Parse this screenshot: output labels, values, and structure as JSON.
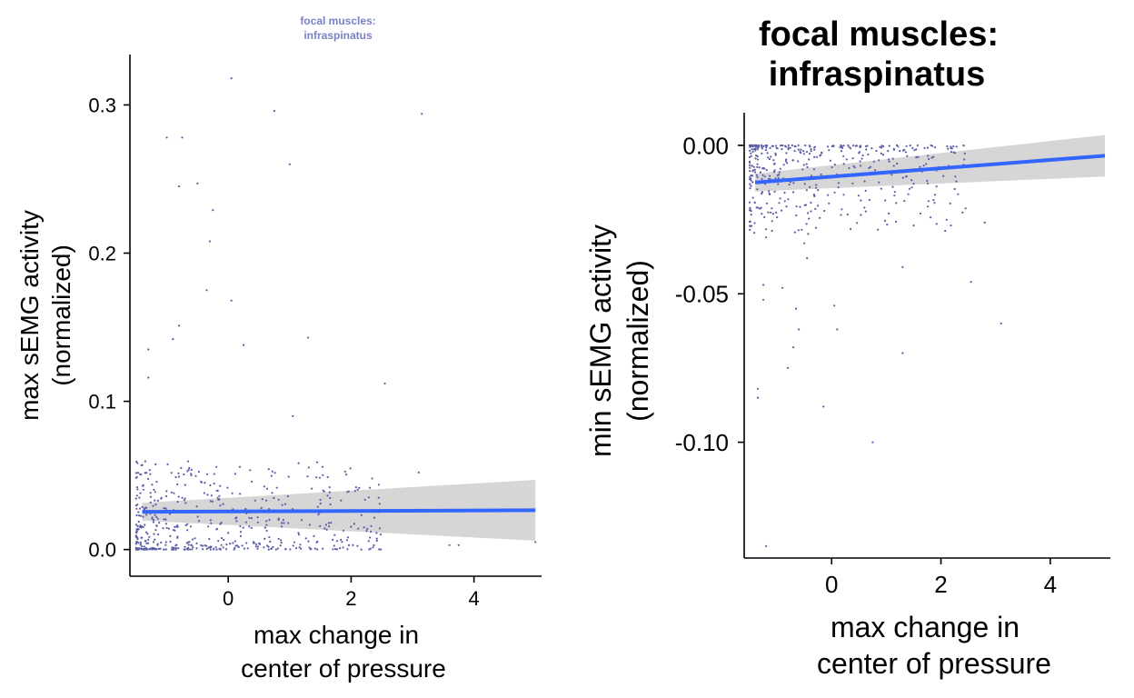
{
  "chart_data": [
    {
      "type": "scatter",
      "title": [
        "focal muscles:",
        "infraspinatus"
      ],
      "xlabel": [
        "max change in",
        "center of pressure"
      ],
      "ylabel": [
        "max sEMG activity",
        "(normalized)"
      ],
      "xlim": [
        -1.6,
        5.1
      ],
      "ylim": [
        -0.018,
        0.334
      ],
      "x_ticks": [
        0,
        2,
        4
      ],
      "x_tick_labels": [
        "0",
        "2",
        "4"
      ],
      "y_ticks": [
        0.0,
        0.1,
        0.2,
        0.3
      ],
      "y_tick_labels": [
        "0.0",
        "0.1",
        "0.2",
        "0.3"
      ],
      "grid": false,
      "colors": {
        "points": "#5b5ea6",
        "fit_line": "#3366ff",
        "ci_band": "#d6d6d6",
        "title": "#7b7fc4"
      },
      "fit": {
        "x": [
          -1.4,
          5.0
        ],
        "y": [
          0.0255,
          0.0265
        ],
        "ci_lower": [
          0.0195,
          0.006
        ],
        "ci_upper": [
          0.0315,
          0.047
        ]
      },
      "points_notable": {
        "x": [
          0.05,
          0.75,
          3.15,
          -1.0,
          -0.75,
          -0.8,
          -0.5,
          -0.25,
          -0.3,
          -0.35,
          1.0,
          0.05,
          0.25,
          1.3,
          -0.8,
          -0.9,
          -1.3,
          -1.3,
          2.55,
          1.05,
          3.6,
          3.75,
          5.0,
          3.1
        ],
        "y": [
          0.318,
          0.296,
          0.294,
          0.278,
          0.278,
          0.245,
          0.247,
          0.229,
          0.208,
          0.175,
          0.26,
          0.168,
          0.138,
          0.143,
          0.151,
          0.142,
          0.135,
          0.116,
          0.112,
          0.09,
          0.003,
          0.003,
          0.005,
          0.052
        ]
      },
      "points_cluster": {
        "n": 520,
        "x_range": [
          -1.5,
          2.5
        ],
        "y_range": [
          0.0,
          0.06
        ]
      }
    },
    {
      "type": "scatter",
      "title": [
        "focal muscles:",
        "infraspinatus"
      ],
      "xlabel": [
        "max change in",
        "center of pressure"
      ],
      "ylabel": [
        "min sEMG activity",
        "(normalized)"
      ],
      "xlim": [
        -1.6,
        5.1
      ],
      "ylim": [
        -0.139,
        0.011
      ],
      "x_ticks": [
        0,
        2,
        4
      ],
      "x_tick_labels": [
        "0",
        "2",
        "4"
      ],
      "y_ticks": [
        0.0,
        -0.05,
        -0.1
      ],
      "y_tick_labels": [
        "0.00",
        "-0.05",
        "-0.10"
      ],
      "grid": false,
      "colors": {
        "points": "#5b5ea6",
        "fit_line": "#3366ff",
        "ci_band": "#d6d6d6",
        "title": "#000000"
      },
      "fit": {
        "x": [
          -1.4,
          5.0
        ],
        "y": [
          -0.0125,
          -0.0035
        ],
        "ci_lower": [
          -0.0155,
          -0.0105
        ],
        "ci_upper": [
          -0.0095,
          0.0035
        ]
      },
      "points_notable": {
        "x": [
          -1.35,
          -1.35,
          -1.2,
          -1.25,
          -0.65,
          -0.6,
          -0.7,
          -0.8,
          -0.45,
          -0.15,
          0.05,
          0.75,
          1.3,
          1.3,
          0.1,
          2.55,
          3.1,
          -1.25,
          -1.2,
          -0.9,
          -0.5,
          0.6,
          1.5,
          2.8
        ],
        "y": [
          -0.082,
          -0.085,
          -0.135,
          -0.047,
          -0.055,
          -0.062,
          -0.068,
          -0.075,
          -0.038,
          -0.088,
          -0.054,
          -0.1,
          -0.07,
          -0.041,
          -0.062,
          -0.046,
          -0.06,
          -0.052,
          -0.031,
          -0.048,
          -0.033,
          -0.021,
          -0.027,
          -0.026
        ]
      },
      "points_cluster": {
        "n": 430,
        "x_range": [
          -1.5,
          2.5
        ],
        "y_range": [
          -0.03,
          0.0
        ]
      }
    }
  ]
}
